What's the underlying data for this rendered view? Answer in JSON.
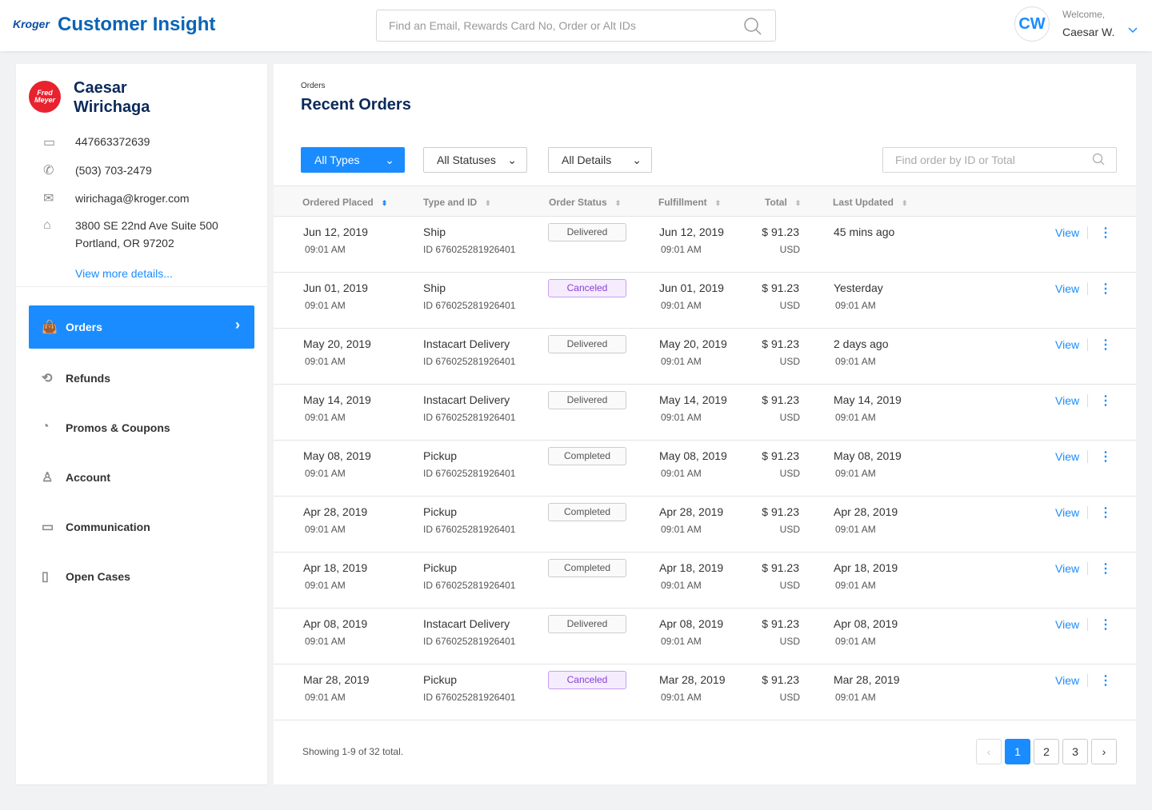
{
  "header": {
    "logo": "Kroger",
    "title": "Customer Insight",
    "search_placeholder": "Find an Email, Rewards Card No, Order or Alt IDs",
    "avatar_initials": "CW",
    "welcome": "Welcome,",
    "user_name": "Caesar W."
  },
  "customer": {
    "store_logo": "Fred Meyer",
    "name": "Caesar Wirichaga",
    "card": "447663372639",
    "phone": "(503) 703-2479",
    "email": "wirichaga@kroger.com",
    "address1": "3800 SE 22nd Ave Suite 500",
    "address2": "Portland, OR 97202",
    "more": "View more details..."
  },
  "nav": [
    {
      "label": "Orders",
      "icon": "bag-icon",
      "active": true
    },
    {
      "label": "Refunds",
      "icon": "refund-icon"
    },
    {
      "label": "Promos & Coupons",
      "icon": "piggy-bank-icon"
    },
    {
      "label": "Account",
      "icon": "user-icon"
    },
    {
      "label": "Communication",
      "icon": "chat-icon"
    },
    {
      "label": "Open Cases",
      "icon": "document-icon"
    }
  ],
  "main": {
    "breadcrumb": "Orders",
    "title": "Recent Orders",
    "filters": {
      "types": "All Types",
      "statuses": "All Statuses",
      "details": "All Details"
    },
    "search_placeholder": "Find order by ID or Total",
    "columns": [
      "Ordered Placed",
      "Type and ID",
      "Order Status",
      "Fulfillment",
      "Total",
      "Last Updated"
    ],
    "view_label": "View",
    "orders": [
      {
        "date": "Jun 12, 2019",
        "time": "09:01 AM",
        "type": "Ship",
        "id": "ID 676025281926401",
        "status": "Delivered",
        "ful_date": "Jun 12, 2019",
        "ful_time": "09:01 AM",
        "total": "$ 91.23",
        "currency": "USD",
        "updated": "45 mins ago",
        "updated_time": ""
      },
      {
        "date": "Jun 01, 2019",
        "time": "09:01 AM",
        "type": "Ship",
        "id": "ID 676025281926401",
        "status": "Canceled",
        "ful_date": "Jun 01, 2019",
        "ful_time": "09:01 AM",
        "total": "$ 91.23",
        "currency": "USD",
        "updated": "Yesterday",
        "updated_time": "09:01 AM"
      },
      {
        "date": "May 20, 2019",
        "time": "09:01 AM",
        "type": "Instacart Delivery",
        "id": "ID 676025281926401",
        "status": "Delivered",
        "ful_date": "May 20, 2019",
        "ful_time": "09:01 AM",
        "total": "$ 91.23",
        "currency": "USD",
        "updated": "2 days ago",
        "updated_time": "09:01 AM"
      },
      {
        "date": "May 14, 2019",
        "time": "09:01 AM",
        "type": "Instacart Delivery",
        "id": "ID 676025281926401",
        "status": "Delivered",
        "ful_date": "May 14, 2019",
        "ful_time": "09:01 AM",
        "total": "$ 91.23",
        "currency": "USD",
        "updated": "May 14, 2019",
        "updated_time": "09:01 AM"
      },
      {
        "date": "May 08, 2019",
        "time": "09:01 AM",
        "type": "Pickup",
        "id": "ID 676025281926401",
        "status": "Completed",
        "ful_date": "May 08, 2019",
        "ful_time": "09:01 AM",
        "total": "$ 91.23",
        "currency": "USD",
        "updated": "May 08, 2019",
        "updated_time": "09:01 AM"
      },
      {
        "date": "Apr 28, 2019",
        "time": "09:01 AM",
        "type": "Pickup",
        "id": "ID 676025281926401",
        "status": "Completed",
        "ful_date": "Apr 28, 2019",
        "ful_time": "09:01 AM",
        "total": "$ 91.23",
        "currency": "USD",
        "updated": "Apr 28, 2019",
        "updated_time": "09:01 AM"
      },
      {
        "date": "Apr 18, 2019",
        "time": "09:01 AM",
        "type": "Pickup",
        "id": "ID 676025281926401",
        "status": "Completed",
        "ful_date": "Apr 18, 2019",
        "ful_time": "09:01 AM",
        "total": "$ 91.23",
        "currency": "USD",
        "updated": "Apr 18, 2019",
        "updated_time": "09:01 AM"
      },
      {
        "date": "Apr 08, 2019",
        "time": "09:01 AM",
        "type": "Instacart Delivery",
        "id": "ID 676025281926401",
        "status": "Delivered",
        "ful_date": "Apr 08, 2019",
        "ful_time": "09:01 AM",
        "total": "$ 91.23",
        "currency": "USD",
        "updated": "Apr 08, 2019",
        "updated_time": "09:01 AM"
      },
      {
        "date": "Mar 28, 2019",
        "time": "09:01 AM",
        "type": "Pickup",
        "id": "ID 676025281926401",
        "status": "Canceled",
        "ful_date": "Mar 28, 2019",
        "ful_time": "09:01 AM",
        "total": "$ 91.23",
        "currency": "USD",
        "updated": "Mar 28, 2019",
        "updated_time": "09:01 AM"
      }
    ],
    "footer": "Showing 1-9 of 32 total.",
    "pages": [
      "1",
      "2",
      "3"
    ],
    "current_page": "1"
  },
  "colors": {
    "accent": "#1a8cff",
    "brand": "#0b64b4",
    "canceled": "#8a3ed6"
  }
}
